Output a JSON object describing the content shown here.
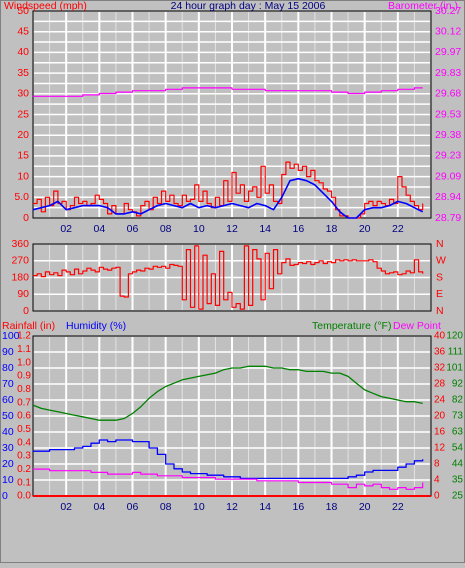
{
  "title": "24 hour graph day : May 15 2006",
  "colors": {
    "wind": "#ff0000",
    "gust": "#0000ff",
    "barometer": "#ff00ff",
    "direction": "#ff0000",
    "rain": "#ff0000",
    "humidity": "#0000ff",
    "temperature": "#008000",
    "dewpoint": "#ff00ff",
    "plot_bg": "#c0c0c0",
    "grid": "#ffffff"
  },
  "x_ticks": [
    "02",
    "04",
    "06",
    "08",
    "10",
    "12",
    "14",
    "16",
    "18",
    "20",
    "22"
  ],
  "chart_data": [
    {
      "type": "line",
      "name": "wind-barometer",
      "title": "24 hour graph day : May 15 2006",
      "ylabel": "Windspeed (mph)",
      "y2label": "Barometer (in.)",
      "yticks": [
        "0",
        "2.5",
        "5.0",
        "7.5",
        "10",
        "12.5",
        "15",
        "17.5",
        "20",
        "22.5",
        "25",
        "27.5",
        "30",
        "32.5",
        "35",
        "37.5",
        "40",
        "42.5",
        "45",
        "47.5",
        "50"
      ],
      "ylim": [
        0,
        50
      ],
      "y2ticks": [
        "28.79",
        "28.94",
        "29.09",
        "29.23",
        "29.38",
        "29.53",
        "29.68",
        "29.83",
        "29.97",
        "30.12",
        "30.27"
      ],
      "y2lim": [
        28.79,
        30.27
      ],
      "xlim": [
        0,
        24
      ],
      "series": [
        {
          "name": "Windspeed",
          "axis": "left",
          "x": [
            0.0,
            0.25,
            0.5,
            0.75,
            1.0,
            1.25,
            1.5,
            1.75,
            2.0,
            2.25,
            2.5,
            2.75,
            3.0,
            3.25,
            3.5,
            3.75,
            4.0,
            4.25,
            4.5,
            4.75,
            5.0,
            5.25,
            5.5,
            5.75,
            6.0,
            6.25,
            6.5,
            6.75,
            7.0,
            7.25,
            7.5,
            7.75,
            8.0,
            8.25,
            8.5,
            8.75,
            9.0,
            9.25,
            9.5,
            9.75,
            10.0,
            10.25,
            10.5,
            10.75,
            11.0,
            11.25,
            11.5,
            11.75,
            12.0,
            12.25,
            12.5,
            12.75,
            13.0,
            13.25,
            13.5,
            13.75,
            14.0,
            14.25,
            14.5,
            14.75,
            15.0,
            15.25,
            15.5,
            15.75,
            16.0,
            16.25,
            16.5,
            16.75,
            17.0,
            17.25,
            17.5,
            17.75,
            18.0,
            18.25,
            18.5,
            18.75,
            19.0,
            19.25,
            19.5,
            19.75,
            20.0,
            20.25,
            20.5,
            20.75,
            21.0,
            21.25,
            21.5,
            21.75,
            22.0,
            22.25,
            22.5,
            22.75,
            23.0,
            23.25,
            23.5
          ],
          "values": [
            3.5,
            4.5,
            1.5,
            5.0,
            3.0,
            6.5,
            3.5,
            4.0,
            2.0,
            3.0,
            5.0,
            3.5,
            4.0,
            3.0,
            3.5,
            5.5,
            4.5,
            3.5,
            1.0,
            3.0,
            1.0,
            1.0,
            3.5,
            2.0,
            1.5,
            0.5,
            3.0,
            4.0,
            2.0,
            5.0,
            3.5,
            6.5,
            4.0,
            5.5,
            3.5,
            3.0,
            5.5,
            4.0,
            4.5,
            8.0,
            4.0,
            6.5,
            3.5,
            2.5,
            5.0,
            3.0,
            9.0,
            4.0,
            11.0,
            6.0,
            8.0,
            4.0,
            6.5,
            7.5,
            5.0,
            12.5,
            6.0,
            8.0,
            4.0,
            3.5,
            10.5,
            13.5,
            12.0,
            13.0,
            11.5,
            12.5,
            10.0,
            11.5,
            9.0,
            8.5,
            7.0,
            6.5,
            5.0,
            2.0,
            0.5,
            0.5,
            0.0,
            0.0,
            0.0,
            1.0,
            3.5,
            4.0,
            3.0,
            4.0,
            3.5,
            3.0,
            4.5,
            3.5,
            10.0,
            7.5,
            5.5,
            4.0,
            3.0,
            2.0,
            3.5
          ]
        },
        {
          "name": "Gust",
          "axis": "left",
          "x": [
            0.0,
            0.5,
            1.0,
            1.5,
            2.0,
            2.5,
            3.0,
            3.5,
            4.0,
            4.5,
            5.0,
            5.5,
            6.0,
            6.5,
            7.0,
            7.5,
            8.0,
            8.5,
            9.0,
            9.5,
            10.0,
            10.5,
            11.0,
            11.5,
            12.0,
            12.5,
            13.0,
            13.5,
            14.0,
            14.5,
            15.0,
            15.5,
            16.0,
            16.5,
            17.0,
            17.5,
            18.0,
            18.5,
            19.0,
            19.5,
            20.0,
            20.5,
            21.0,
            21.5,
            22.0,
            22.5,
            23.0,
            23.5
          ],
          "values": [
            2.0,
            2.5,
            3.0,
            4.0,
            2.0,
            2.5,
            3.0,
            3.0,
            3.0,
            2.5,
            1.0,
            1.0,
            1.5,
            1.0,
            2.0,
            3.0,
            3.5,
            3.0,
            2.5,
            3.5,
            2.5,
            3.0,
            2.5,
            3.0,
            3.5,
            3.0,
            2.5,
            3.5,
            3.0,
            2.0,
            5.0,
            9.0,
            9.5,
            9.0,
            8.0,
            6.0,
            4.0,
            1.5,
            0.0,
            0.0,
            2.0,
            2.5,
            2.5,
            3.0,
            4.0,
            3.5,
            2.5,
            1.5
          ]
        },
        {
          "name": "Barometer",
          "axis": "right",
          "x": [
            0,
            1,
            2,
            3,
            4,
            5,
            6,
            7,
            8,
            9,
            10,
            11,
            12,
            13,
            14,
            15,
            16,
            17,
            18,
            19,
            20,
            21,
            22,
            23,
            23.5
          ],
          "values": [
            29.66,
            29.66,
            29.66,
            29.67,
            29.68,
            29.69,
            29.7,
            29.7,
            29.71,
            29.72,
            29.72,
            29.72,
            29.71,
            29.71,
            29.7,
            29.7,
            29.7,
            29.7,
            29.69,
            29.68,
            29.69,
            29.7,
            29.71,
            29.72,
            29.72
          ]
        }
      ]
    },
    {
      "type": "line",
      "name": "wind-direction",
      "yticks": [
        "0",
        "90",
        "180",
        "270",
        "360"
      ],
      "ylim": [
        0,
        360
      ],
      "y2ticks": [
        "N",
        "E",
        "S",
        "W",
        "N"
      ],
      "xlim": [
        0,
        24
      ],
      "series": [
        {
          "name": "Wind direction",
          "x": [
            0.0,
            0.25,
            0.5,
            0.75,
            1.0,
            1.25,
            1.5,
            1.75,
            2.0,
            2.25,
            2.5,
            2.75,
            3.0,
            3.25,
            3.5,
            3.75,
            4.0,
            4.25,
            4.5,
            4.75,
            5.0,
            5.25,
            5.5,
            5.75,
            6.0,
            6.25,
            6.5,
            6.75,
            7.0,
            7.25,
            7.5,
            7.75,
            8.0,
            8.25,
            8.5,
            8.75,
            9.0,
            9.25,
            9.5,
            9.75,
            10.0,
            10.25,
            10.5,
            10.75,
            11.0,
            11.25,
            11.5,
            11.75,
            12.0,
            12.25,
            12.5,
            12.75,
            13.0,
            13.25,
            13.5,
            13.75,
            14.0,
            14.25,
            14.5,
            14.75,
            15.0,
            15.25,
            15.5,
            15.75,
            16.0,
            16.25,
            16.5,
            16.75,
            17.0,
            17.25,
            17.5,
            17.75,
            18.0,
            18.25,
            18.5,
            18.75,
            19.0,
            19.25,
            19.5,
            19.75,
            20.0,
            20.25,
            20.5,
            20.75,
            21.0,
            21.25,
            21.5,
            21.75,
            22.0,
            22.25,
            22.5,
            22.75,
            23.0,
            23.25,
            23.5
          ],
          "values": [
            190,
            200,
            185,
            210,
            195,
            205,
            190,
            220,
            210,
            195,
            225,
            200,
            215,
            230,
            220,
            210,
            235,
            225,
            220,
            230,
            235,
            80,
            75,
            200,
            210,
            220,
            215,
            230,
            225,
            240,
            235,
            240,
            230,
            250,
            245,
            240,
            60,
            330,
            20,
            350,
            10,
            300,
            40,
            200,
            30,
            320,
            60,
            100,
            20,
            40,
            10,
            350,
            30,
            330,
            280,
            60,
            310,
            120,
            330,
            200,
            260,
            280,
            245,
            250,
            260,
            255,
            265,
            250,
            260,
            270,
            255,
            265,
            260,
            275,
            270,
            275,
            270,
            275,
            270,
            270,
            270,
            275,
            265,
            230,
            215,
            200,
            205,
            210,
            195,
            200,
            215,
            205,
            275,
            210,
            200
          ]
        }
      ]
    },
    {
      "type": "line",
      "name": "rain-humidity-temperature",
      "ylabel": "Rainfall (in)",
      "ylabel2": "Humidity (%)",
      "y2label": "Temperature (°F)",
      "y2label2": "Dew Point",
      "yticks_rain": [
        "0.0",
        "0.1",
        "0.2",
        "0.3",
        "0.4",
        "0.5",
        "0.6",
        "0.7",
        "0.8",
        "0.9",
        "1.0",
        "1.1",
        "1.2"
      ],
      "ylim_rain": [
        0,
        1.2
      ],
      "yticks_humidity": [
        "0",
        "10",
        "20",
        "30",
        "40",
        "50",
        "60",
        "70",
        "80",
        "90",
        "100"
      ],
      "ylim_humidity": [
        0,
        100
      ],
      "yticks_celsius": [
        "0",
        "4",
        "8",
        "12",
        "16",
        "20",
        "24",
        "28",
        "32",
        "36",
        "40"
      ],
      "yticks_temperature": [
        "25",
        "35",
        "44",
        "54",
        "63",
        "73",
        "82",
        "92",
        "101",
        "111",
        "120"
      ],
      "ylim_temperature": [
        25,
        120
      ],
      "xlim": [
        0,
        24
      ],
      "series": [
        {
          "name": "Rainfall",
          "axis": "rain",
          "x": [
            0,
            24
          ],
          "values": [
            0.0,
            0.0
          ]
        },
        {
          "name": "Humidity",
          "axis": "humidity",
          "x": [
            0,
            0.5,
            1,
            1.5,
            2,
            2.5,
            3,
            3.5,
            4,
            4.5,
            5,
            5.5,
            6,
            6.5,
            7,
            7.5,
            8,
            8.5,
            9,
            9.5,
            10,
            10.5,
            11,
            11.5,
            12,
            12.5,
            13,
            13.5,
            14,
            14.5,
            15,
            15.5,
            16,
            16.5,
            17,
            17.5,
            18,
            18.5,
            19,
            19.5,
            20,
            20.5,
            21,
            21.5,
            22,
            22.5,
            23,
            23.5
          ],
          "values": [
            28,
            28,
            29,
            29,
            29,
            30,
            31,
            33,
            35,
            34,
            35,
            35,
            34,
            34,
            30,
            26,
            20,
            17,
            15,
            14,
            14,
            13,
            13,
            12,
            12,
            11,
            11,
            11,
            11,
            11,
            11,
            11,
            11,
            11,
            11,
            11,
            11,
            11,
            12,
            13,
            15,
            16,
            16,
            16,
            18,
            20,
            22,
            23
          ]
        },
        {
          "name": "Temperature",
          "axis": "temperature",
          "x": [
            0,
            0.5,
            1,
            1.5,
            2,
            2.5,
            3,
            3.5,
            4,
            4.5,
            5,
            5.5,
            6,
            6.5,
            7,
            7.5,
            8,
            8.5,
            9,
            9.5,
            10,
            10.5,
            11,
            11.5,
            12,
            12.5,
            13,
            13.5,
            14,
            14.5,
            15,
            15.5,
            16,
            16.5,
            17,
            17.5,
            18,
            18.5,
            19,
            19.5,
            20,
            20.5,
            21,
            21.5,
            22,
            22.5,
            23,
            23.5
          ],
          "values": [
            79,
            77,
            76,
            75,
            74,
            73,
            72,
            71,
            70,
            70,
            70,
            71,
            74,
            78,
            83,
            87,
            90,
            92,
            94,
            95,
            96,
            97,
            98,
            100,
            101,
            101,
            102,
            102,
            102,
            101,
            101,
            100,
            100,
            99,
            99,
            99,
            98,
            98,
            96,
            92,
            88,
            86,
            84,
            83,
            82,
            81,
            81,
            80
          ]
        },
        {
          "name": "Dew Point",
          "axis": "temperature",
          "x": [
            0,
            0.5,
            1,
            1.5,
            2,
            2.5,
            3,
            3.5,
            4,
            4.5,
            5,
            5.5,
            6,
            6.5,
            7,
            7.5,
            8,
            8.5,
            9,
            9.5,
            10,
            10.5,
            11,
            11.5,
            12,
            12.5,
            13,
            13.5,
            14,
            14.5,
            15,
            15.5,
            16,
            16.5,
            17,
            17.5,
            18,
            18.5,
            19,
            19.5,
            20,
            20.5,
            21,
            21.5,
            22,
            22.5,
            23,
            23.5
          ],
          "values": [
            41,
            41,
            40,
            40,
            40,
            40,
            40,
            39,
            39,
            38,
            38,
            38,
            39,
            38,
            38,
            37,
            37,
            37,
            36,
            36,
            36,
            36,
            35,
            35,
            35,
            35,
            35,
            34,
            34,
            34,
            34,
            34,
            33,
            33,
            33,
            33,
            32,
            32,
            30,
            32,
            31,
            32,
            30,
            29,
            30,
            29,
            30,
            33
          ]
        }
      ]
    }
  ]
}
